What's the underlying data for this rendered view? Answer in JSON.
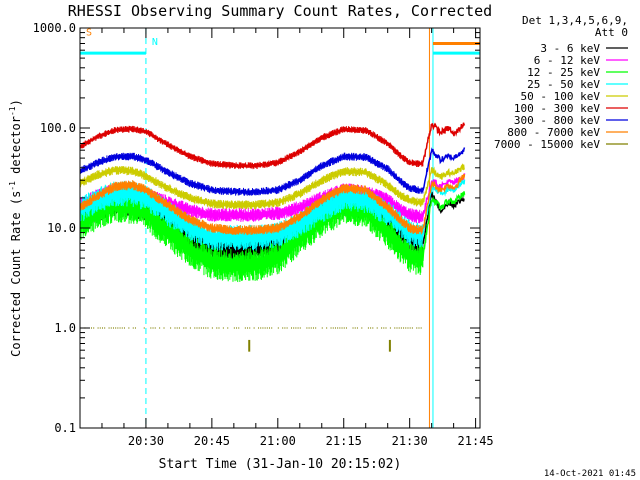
{
  "chart_data": {
    "type": "line",
    "title": "RHESSI Observing Summary Count Rates, Corrected",
    "xlabel": "Start Time (31-Jan-10 20:15:02)",
    "ylabel": "Corrected Count Rate (s⁻¹ detector⁻¹)",
    "ylabel_parts": [
      "Corrected Count Rate (s",
      "-1",
      " detector",
      "-1",
      ")"
    ],
    "y_scale": "log",
    "ylim": [
      0.1,
      1000.0
    ],
    "xlim_minutes": [
      0,
      91
    ],
    "y_ticks": [
      {
        "value": 1000,
        "label": "1000.0"
      },
      {
        "value": 100,
        "label": "100.0"
      },
      {
        "value": 10,
        "label": "10.0"
      },
      {
        "value": 1,
        "label": "1.0"
      },
      {
        "value": 0.1,
        "label": "0.1"
      }
    ],
    "x_ticks": [
      {
        "minute": 15,
        "label": "20:30"
      },
      {
        "minute": 30,
        "label": "20:45"
      },
      {
        "minute": 45,
        "label": "21:00"
      },
      {
        "minute": 60,
        "label": "21:15"
      },
      {
        "minute": 75,
        "label": "21:30"
      },
      {
        "minute": 90,
        "label": "21:45"
      }
    ],
    "legend_title": [
      "Det 1,3,4,5,6,9,",
      "Att 0"
    ],
    "legend_position": "right",
    "grid": false,
    "series": [
      {
        "name": "3 - 6 keV",
        "color": "#000000",
        "noise": 0.14,
        "x": [
          0,
          4,
          8,
          12,
          15,
          20,
          25,
          30,
          35,
          40,
          45,
          50,
          55,
          60,
          65,
          70,
          73,
          75,
          77,
          78
        ],
        "y": [
          13,
          16,
          18,
          17.5,
          16,
          11,
          8,
          6,
          6,
          6.2,
          7.5,
          10,
          14,
          17.5,
          17,
          12,
          9,
          7.5,
          7,
          7
        ]
      },
      {
        "name": "6 - 12 keV",
        "color": "#ff00ff",
        "noise": 0.07,
        "x": [
          0,
          4,
          8,
          12,
          15,
          20,
          25,
          30,
          35,
          40,
          45,
          50,
          55,
          60,
          65,
          70,
          73,
          75,
          77,
          78
        ],
        "y": [
          17,
          21,
          24,
          24,
          22,
          18,
          15,
          13.5,
          13.5,
          13.5,
          14,
          16,
          20,
          24,
          23,
          19,
          15,
          13.5,
          13,
          13
        ]
      },
      {
        "name": "12 - 25 keV",
        "color": "#00ff00",
        "noise": 0.17,
        "x": [
          0,
          4,
          8,
          12,
          15,
          20,
          25,
          30,
          35,
          40,
          45,
          50,
          55,
          60,
          65,
          70,
          73,
          75,
          77,
          78
        ],
        "y": [
          11,
          14,
          17,
          16,
          14,
          9,
          6,
          4.5,
          4.2,
          4.3,
          5,
          8,
          12,
          16,
          15,
          9,
          6.5,
          5.2,
          5,
          5
        ]
      },
      {
        "name": "25 - 50 keV",
        "color": "#00ffff",
        "noise": 0.13,
        "x": [
          0,
          4,
          8,
          12,
          15,
          20,
          25,
          30,
          35,
          40,
          45,
          50,
          55,
          60,
          65,
          70,
          73,
          75,
          77,
          78
        ],
        "y": [
          15,
          19,
          22,
          22,
          20,
          14,
          10,
          8,
          8,
          8,
          8.5,
          11,
          15,
          20,
          19,
          14,
          11,
          9,
          8.5,
          8.5
        ]
      },
      {
        "name": "50 - 100 keV",
        "color": "#cccc00",
        "noise": 0.045,
        "x": [
          0,
          4,
          8,
          12,
          15,
          20,
          25,
          30,
          35,
          40,
          45,
          50,
          55,
          60,
          65,
          70,
          73,
          75,
          77,
          78
        ],
        "y": [
          28,
          34,
          38,
          37,
          33,
          25,
          20,
          17.5,
          17,
          17,
          18,
          22,
          30,
          37,
          36,
          27,
          21,
          19,
          18,
          18
        ]
      },
      {
        "name": "100 - 300 keV",
        "color": "#dd0000",
        "noise": 0.035,
        "x": [
          0,
          4,
          8,
          12,
          15,
          20,
          25,
          30,
          35,
          40,
          45,
          50,
          55,
          60,
          65,
          70,
          73,
          75,
          77,
          78
        ],
        "y": [
          65,
          82,
          95,
          98,
          92,
          68,
          52,
          44,
          42,
          42,
          45,
          58,
          80,
          97,
          95,
          70,
          52,
          45,
          44,
          44
        ]
      },
      {
        "name": "300 - 800 keV",
        "color": "#0000dd",
        "noise": 0.04,
        "x": [
          0,
          4,
          8,
          12,
          15,
          20,
          25,
          30,
          35,
          40,
          45,
          50,
          55,
          60,
          65,
          70,
          73,
          75,
          77,
          78
        ],
        "y": [
          37,
          45,
          52,
          52,
          48,
          36,
          28,
          24,
          23,
          23,
          24,
          30,
          42,
          52,
          51,
          39,
          29,
          25,
          24,
          24
        ]
      },
      {
        "name": "800 - 7000 keV",
        "color": "#ff8000",
        "noise": 0.05,
        "x": [
          0,
          4,
          8,
          12,
          15,
          20,
          25,
          30,
          35,
          40,
          45,
          50,
          55,
          60,
          65,
          70,
          73,
          75,
          77,
          78
        ],
        "y": [
          16,
          21,
          26,
          27,
          24,
          17,
          12,
          10,
          9.5,
          9.5,
          10,
          13,
          19,
          25,
          24,
          16,
          12,
          10,
          9.5,
          9.5
        ]
      },
      {
        "name": "7000 - 15000 keV",
        "color": "#808000",
        "noise": 0.0,
        "sparse": true,
        "x": [
          0,
          5,
          10,
          15,
          20,
          25,
          30,
          35,
          40,
          45,
          50,
          55,
          60,
          65,
          70,
          75,
          78
        ],
        "y": [
          1,
          1,
          1,
          1,
          1,
          1,
          1,
          1,
          1,
          1,
          1,
          1,
          1,
          1,
          1,
          1,
          1
        ]
      }
    ],
    "post_gap_series": [
      {
        "color": "#000000",
        "x": [
          78,
          80,
          82,
          84,
          85,
          86,
          87.5
        ],
        "y": [
          7,
          22,
          15,
          18,
          17,
          18,
          20
        ]
      },
      {
        "color": "#ff00ff",
        "x": [
          78,
          80,
          82,
          84,
          85,
          86,
          87.5
        ],
        "y": [
          13,
          30,
          26,
          29,
          28,
          30,
          33
        ]
      },
      {
        "color": "#00ff00",
        "x": [
          78,
          80,
          82,
          84,
          85,
          86,
          87.5
        ],
        "y": [
          5,
          20,
          16,
          19,
          18,
          20,
          22
        ]
      },
      {
        "color": "#00ffff",
        "x": [
          78,
          80,
          82,
          84,
          85,
          86,
          87.5
        ],
        "y": [
          8.5,
          26,
          22,
          25,
          24,
          26,
          29
        ]
      },
      {
        "color": "#cccc00",
        "x": [
          78,
          80,
          82,
          84,
          85,
          86,
          87.5
        ],
        "y": [
          18,
          38,
          32,
          36,
          35,
          38,
          42
        ]
      },
      {
        "color": "#dd0000",
        "x": [
          78,
          80,
          82,
          84,
          85,
          86,
          87.5
        ],
        "y": [
          44,
          110,
          90,
          100,
          85,
          95,
          112
        ]
      },
      {
        "color": "#0000dd",
        "x": [
          78,
          80,
          82,
          84,
          85,
          86,
          87.5
        ],
        "y": [
          24,
          60,
          48,
          52,
          50,
          55,
          60
        ]
      },
      {
        "color": "#ff8000",
        "x": [
          78,
          80,
          82,
          84,
          85,
          86,
          87.5
        ],
        "y": [
          9.5,
          28,
          24,
          27,
          25,
          28,
          34
        ]
      }
    ],
    "vlines": [
      {
        "minute": 15,
        "color": "#00ffff",
        "style": "dashed"
      },
      {
        "minute": 79.5,
        "color": "#ff8000",
        "style": "solid"
      },
      {
        "minute": 80.3,
        "color": "#00ffff",
        "style": "solid"
      },
      {
        "minute": 91,
        "color": "#ff8000",
        "style": "dashed"
      }
    ],
    "flag_bars": [
      {
        "label": "S",
        "color": "#ff8000",
        "x0": 0,
        "x1": 15,
        "y": 700,
        "label_pos": "start",
        "draw_bar": false
      },
      {
        "label": "N",
        "color": "#00ffff",
        "x0": 0,
        "x1": 15,
        "y": 560,
        "label_pos": "end",
        "draw_bar": true
      },
      {
        "label": "",
        "color": "#ff8000",
        "x0": 80.3,
        "x1": 91,
        "y": 700,
        "draw_bar": true
      },
      {
        "label": "",
        "color": "#00ffff",
        "x0": 80.3,
        "x1": 91,
        "y": 560,
        "draw_bar": true
      }
    ],
    "small_ticks": [
      {
        "minute": 38.5,
        "y0": 0.58,
        "y1": 0.76,
        "color": "#808000"
      },
      {
        "minute": 70.5,
        "y0": 0.58,
        "y1": 0.76,
        "color": "#808000"
      }
    ]
  },
  "footer": {
    "timestamp": "14-Oct-2021 01:45"
  }
}
